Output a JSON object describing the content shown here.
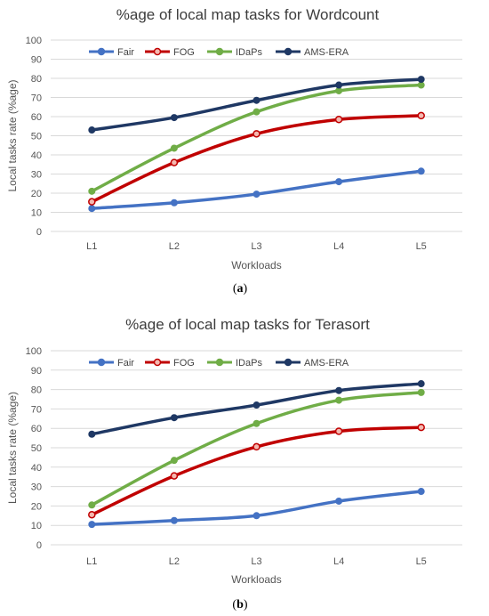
{
  "chart_data": [
    {
      "type": "line",
      "title": "%age of local map tasks for Wordcount",
      "xlabel": "Workloads",
      "ylabel": "Local tasks rate (%age)",
      "ylim": [
        0,
        100
      ],
      "ytick_step": 10,
      "yticks": [
        "0",
        "10",
        "20",
        "30",
        "40",
        "50",
        "60",
        "70",
        "80",
        "90",
        "100"
      ],
      "categories": [
        "L1",
        "L2",
        "L3",
        "L4",
        "L5"
      ],
      "grid": true,
      "legend_position": "top",
      "caption_open": "(",
      "caption_letter": "a",
      "caption_close": ")",
      "series": [
        {
          "name": "Fair",
          "color": "#4472c4",
          "marker": "filled",
          "values": [
            12,
            15,
            19.5,
            26,
            31.5
          ]
        },
        {
          "name": "FOG",
          "color": "#c00000",
          "marker": "hollow",
          "values": [
            15.5,
            36,
            51,
            58.5,
            60.5
          ]
        },
        {
          "name": "IDaPs",
          "color": "#70ad47",
          "marker": "filled",
          "values": [
            21,
            43.5,
            62.5,
            73.5,
            76.5
          ]
        },
        {
          "name": "AMS-ERA",
          "color": "#1f3864",
          "marker": "filled",
          "values": [
            53,
            59.5,
            68.5,
            76.5,
            79.5
          ]
        }
      ]
    },
    {
      "type": "line",
      "title": "%age of local map tasks for Terasort",
      "xlabel": "Workloads",
      "ylabel": "Local tasks rate (%age)",
      "ylim": [
        0,
        100
      ],
      "ytick_step": 10,
      "yticks": [
        "0",
        "10",
        "20",
        "30",
        "40",
        "50",
        "60",
        "70",
        "80",
        "90",
        "100"
      ],
      "categories": [
        "L1",
        "L2",
        "L3",
        "L4",
        "L5"
      ],
      "grid": true,
      "legend_position": "top",
      "caption_open": "(",
      "caption_letter": "b",
      "caption_close": ")",
      "series": [
        {
          "name": "Fair",
          "color": "#4472c4",
          "marker": "filled",
          "values": [
            10.5,
            12.5,
            15,
            22.5,
            27.5
          ]
        },
        {
          "name": "FOG",
          "color": "#c00000",
          "marker": "hollow",
          "values": [
            15.5,
            35.5,
            50.5,
            58.5,
            60.5
          ]
        },
        {
          "name": "IDaPs",
          "color": "#70ad47",
          "marker": "filled",
          "values": [
            20.5,
            43.5,
            62.5,
            74.5,
            78.5
          ]
        },
        {
          "name": "AMS-ERA",
          "color": "#1f3864",
          "marker": "filled",
          "values": [
            57,
            65.5,
            72,
            79.5,
            83
          ]
        }
      ]
    }
  ]
}
